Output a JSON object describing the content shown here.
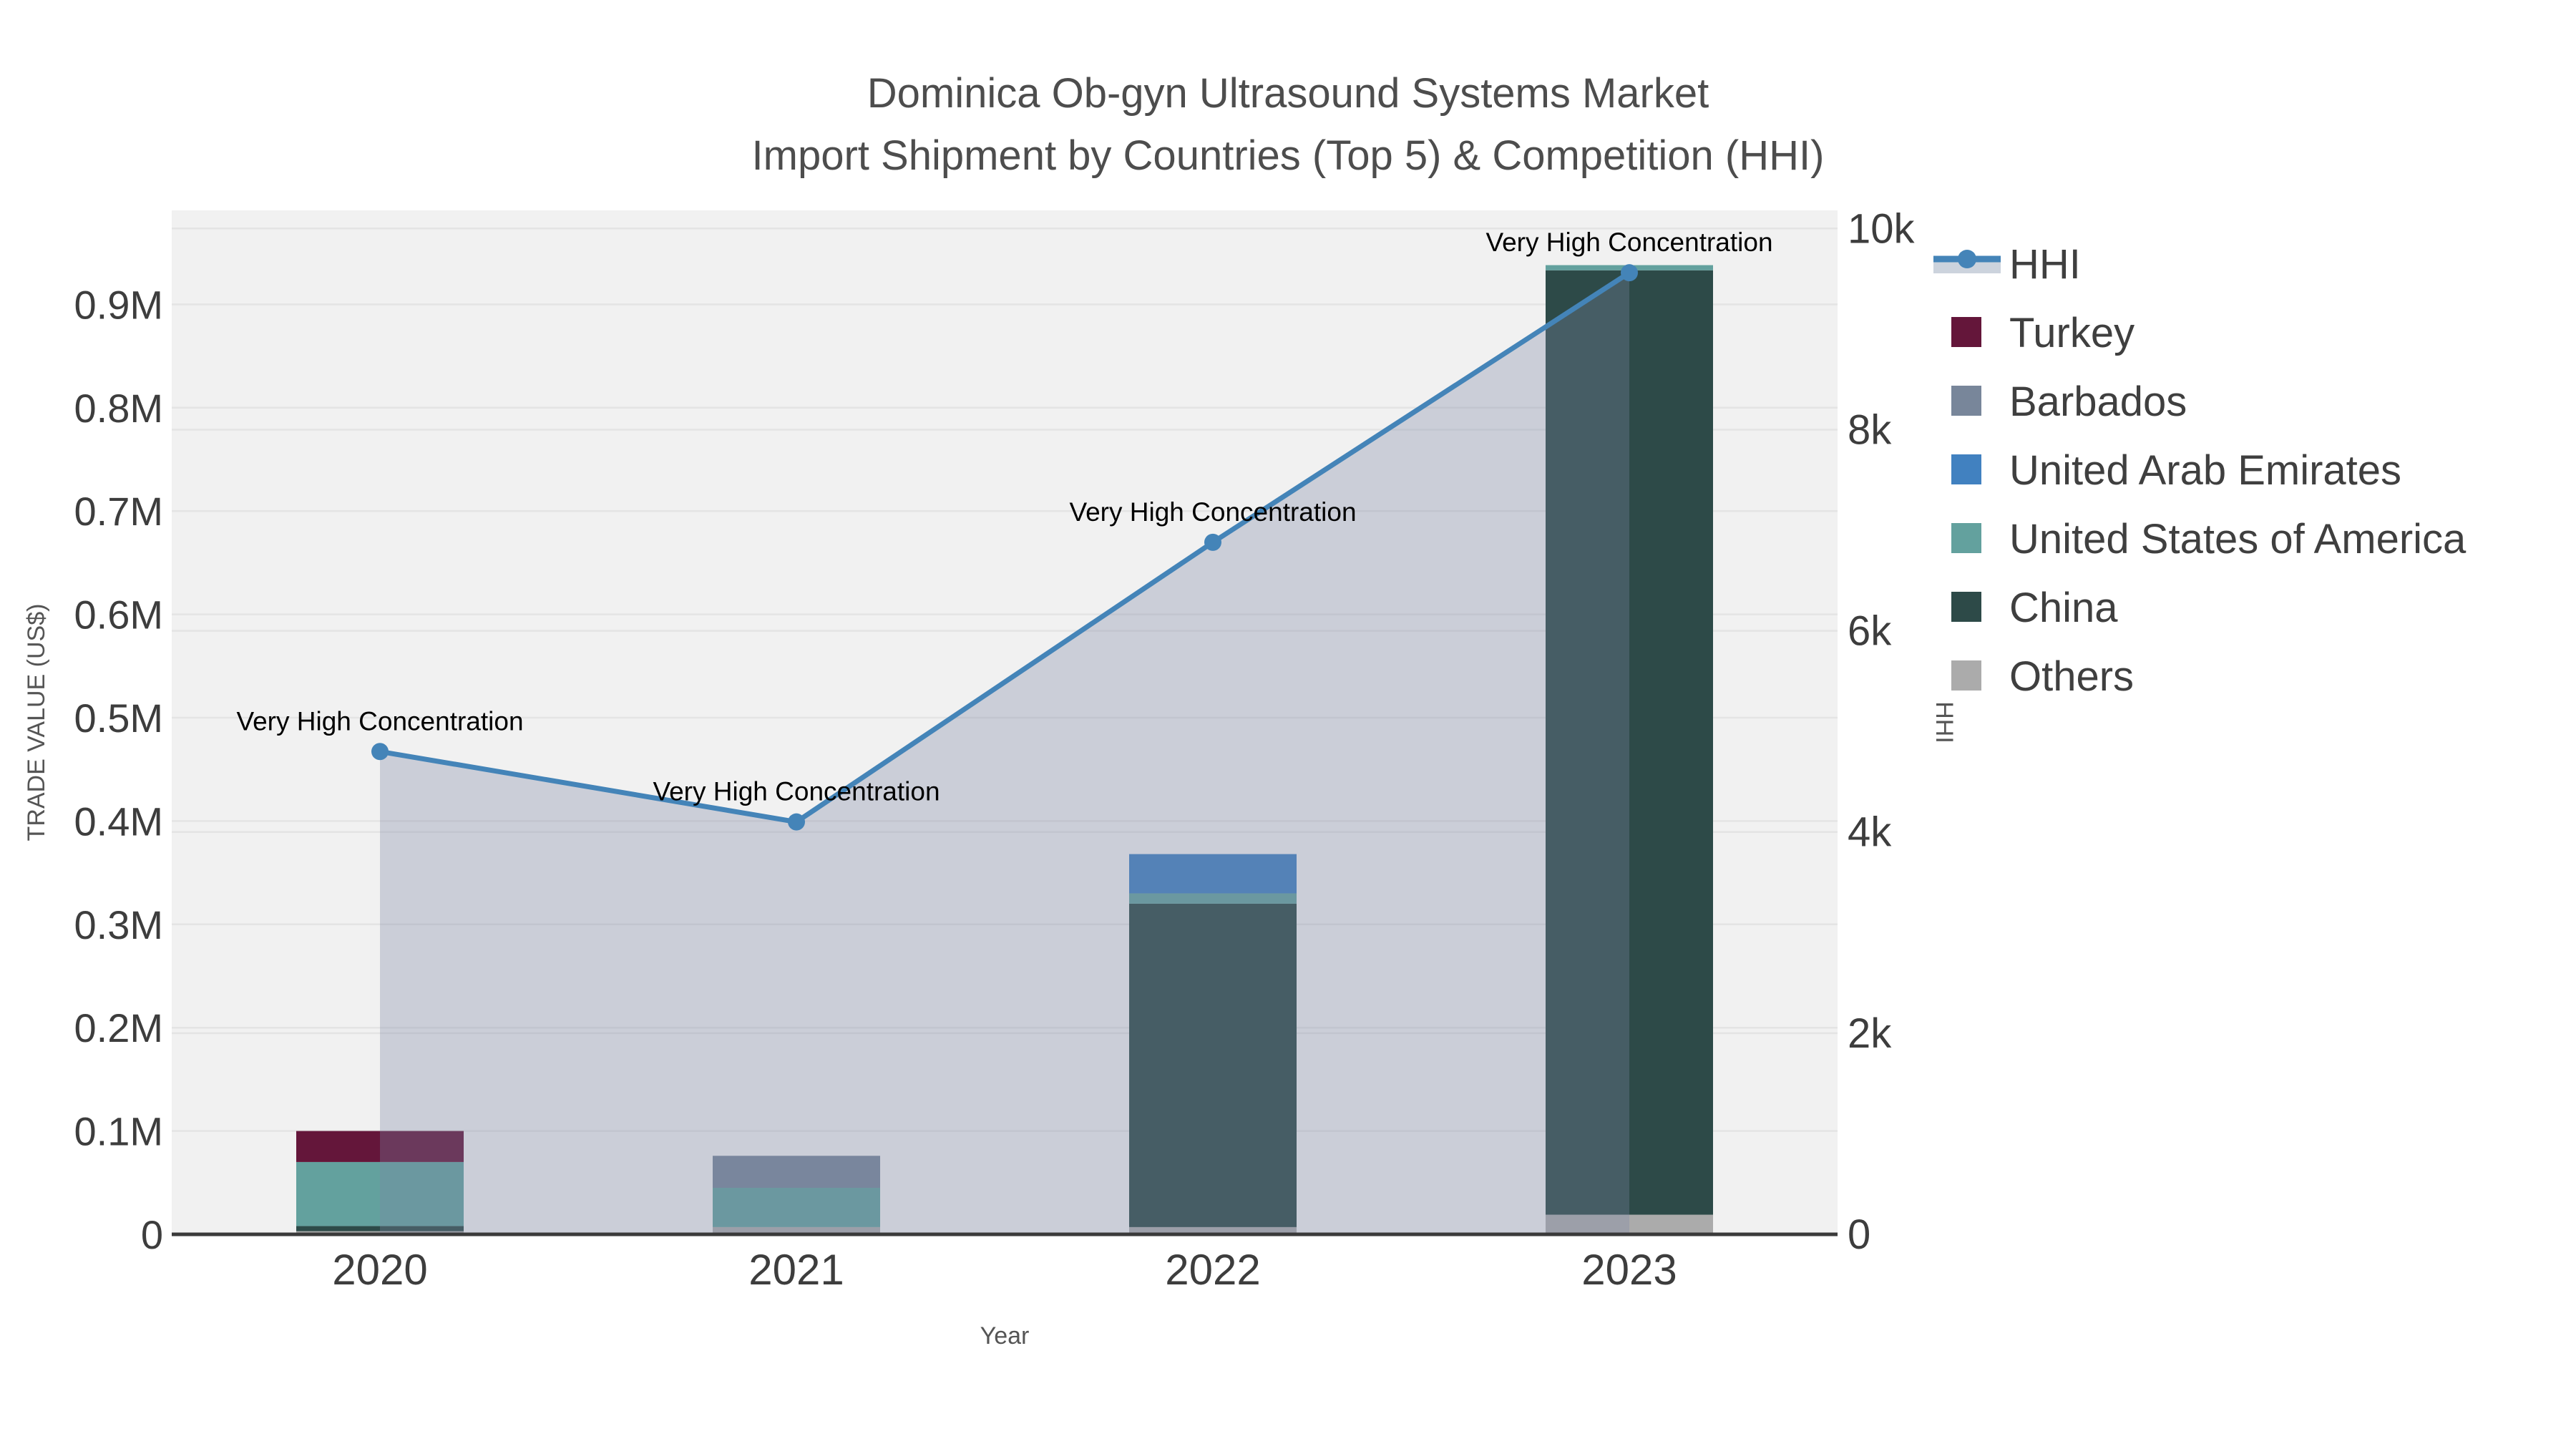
{
  "title": {
    "line1": "Dominica Ob-gyn Ultrasound Systems Market",
    "line2": "Import Shipment by Countries (Top 5) & Competition (HHI)"
  },
  "annotation_label": "Very High Concentration",
  "axes": {
    "x": {
      "title": "Year",
      "categories": [
        "2020",
        "2021",
        "2022",
        "2023"
      ]
    },
    "y_left": {
      "title": "TRADE VALUE (US$)",
      "tick_labels": [
        "0",
        "0.1M",
        "0.2M",
        "0.3M",
        "0.4M",
        "0.5M",
        "0.6M",
        "0.7M",
        "0.8M",
        "0.9M"
      ],
      "tick_values": [
        0,
        100000,
        200000,
        300000,
        400000,
        500000,
        600000,
        700000,
        800000,
        900000
      ],
      "range": [
        0,
        991000
      ]
    },
    "y_right": {
      "title": "HHI",
      "tick_labels": [
        "0",
        "2k",
        "4k",
        "6k",
        "8k",
        "10k"
      ],
      "tick_values": [
        0,
        2000,
        4000,
        6000,
        8000,
        10000
      ],
      "range": [
        0,
        10180
      ]
    }
  },
  "legend": {
    "items": [
      {
        "label": "HHI",
        "color": "#4484b8",
        "type": "line"
      },
      {
        "label": "Turkey",
        "color": "#64163a",
        "type": "swatch"
      },
      {
        "label": "Barbados",
        "color": "#78869a",
        "type": "swatch"
      },
      {
        "label": "United Arab Emirates",
        "color": "#4181c0",
        "type": "swatch"
      },
      {
        "label": "United States of America",
        "color": "#63a19e",
        "type": "swatch"
      },
      {
        "label": "China",
        "color": "#2d4a48",
        "type": "swatch"
      },
      {
        "label": "Others",
        "color": "#ababab",
        "type": "swatch"
      }
    ]
  },
  "colors": {
    "page_bg": "#ffffff",
    "plot_bg": "#f1f1f1",
    "grid": "#e4e4e4",
    "axis_line": "#3a3a3a",
    "title_text": "#4d4d4d",
    "tick_text": "#3d3d3d",
    "axis_title_text": "#555555",
    "annotation_text": "#000000",
    "legend_text": "#3f3f3f",
    "hhi_line": "#4484b8",
    "hhi_area": "rgba(125,135,165,0.32)",
    "hhi_legend_band": "#ccd3dd"
  },
  "chart_data": {
    "type": "bar+line",
    "title": "Dominica Ob-gyn Ultrasound Systems Market — Import Shipment by Countries (Top 5) & Competition (HHI)",
    "xlabel": "Year",
    "ylabel": "TRADE VALUE (US$)",
    "ylabel2": "HHI",
    "categories": [
      "2020",
      "2021",
      "2022",
      "2023"
    ],
    "bar_unit": "US$",
    "stack_order_bottom_to_top": [
      "Others",
      "China",
      "United States of America",
      "United Arab Emirates",
      "Barbados",
      "Turkey"
    ],
    "series": [
      {
        "name": "Turkey",
        "type": "bar",
        "color": "#64163a",
        "values": [
          30000,
          0,
          0,
          0
        ]
      },
      {
        "name": "Barbados",
        "type": "bar",
        "color": "#78869a",
        "values": [
          0,
          31000,
          0,
          0
        ]
      },
      {
        "name": "United Arab Emirates",
        "type": "bar",
        "color": "#4181c0",
        "values": [
          0,
          0,
          38000,
          0
        ]
      },
      {
        "name": "United States of America",
        "type": "bar",
        "color": "#63a19e",
        "values": [
          62000,
          38000,
          10000,
          5000
        ]
      },
      {
        "name": "China",
        "type": "bar",
        "color": "#2d4a48",
        "values": [
          5000,
          0,
          313000,
          914000
        ]
      },
      {
        "name": "Others",
        "type": "bar",
        "color": "#ababab",
        "values": [
          3000,
          7000,
          7000,
          19000
        ]
      }
    ],
    "bar_totals": [
      100000,
      76000,
      368000,
      938000
    ],
    "hhi": {
      "name": "HHI",
      "type": "line",
      "axis": "right",
      "color": "#4484b8",
      "area_color": "rgba(125,135,165,0.32)",
      "values": [
        4800,
        4100,
        6880,
        9560
      ],
      "point_annotations": [
        "Very High Concentration",
        "Very High Concentration",
        "Very High Concentration",
        "Very High Concentration"
      ]
    },
    "ylim_left": [
      0,
      991000
    ],
    "ylim_right": [
      0,
      10180
    ],
    "grid": true,
    "legend_position": "right"
  }
}
